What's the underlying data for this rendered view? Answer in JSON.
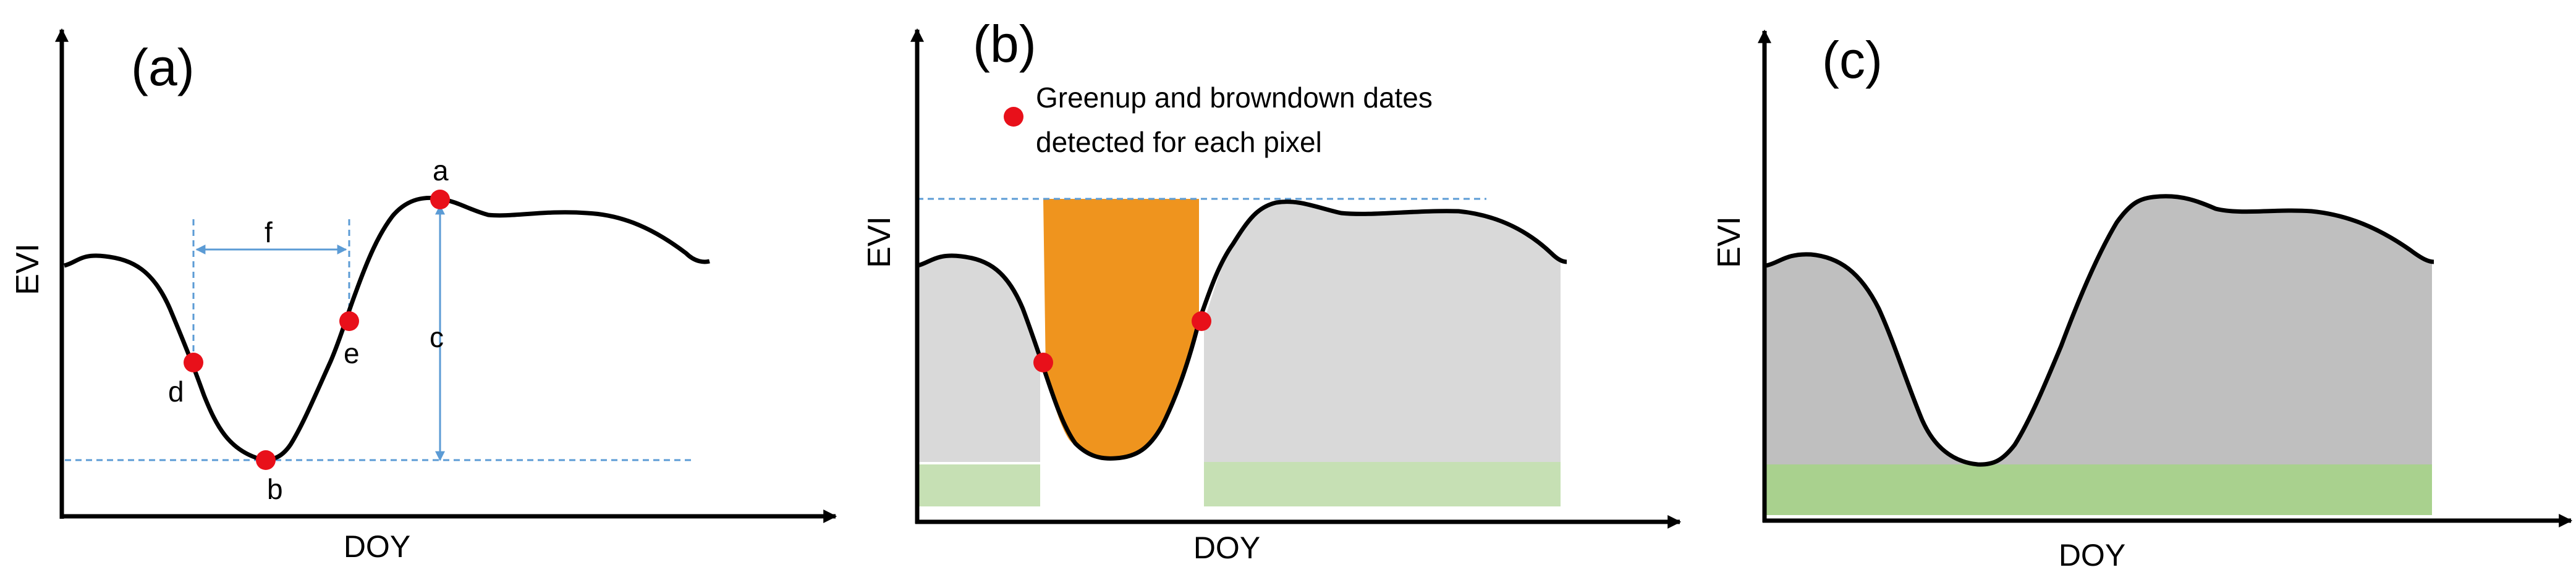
{
  "panels": [
    {
      "tag": "(a)",
      "y_label": "EVI",
      "x_label": "DOY",
      "points": {
        "a": "a",
        "b": "b",
        "d": "d",
        "e": "e"
      },
      "measures": {
        "f": "f",
        "c": "c"
      }
    },
    {
      "tag": "(b)",
      "y_label": "EVI",
      "x_label": "DOY",
      "legend_line1": "Greenup and browndown dates",
      "legend_line2": "detected for each pixel"
    },
    {
      "tag": "(c)",
      "y_label": "EVI",
      "x_label": "DOY"
    }
  ],
  "colors": {
    "curve": "#000000",
    "marker": "#e8101a",
    "guide": "#5b9bd5",
    "grey_fill": "#d9d9d9",
    "dark_grey_fill": "#bfbfbf",
    "orange_fill": "#ef941e",
    "light_green": "#c6e0b4",
    "green": "#a9d18e"
  }
}
